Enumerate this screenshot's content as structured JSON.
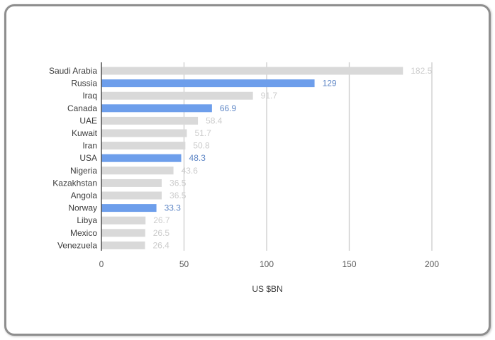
{
  "chart_data": {
    "type": "bar",
    "orientation": "horizontal",
    "categories": [
      "Saudi Arabia",
      "Russia",
      "Iraq",
      "Canada",
      "UAE",
      "Kuwait",
      "Iran",
      "USA",
      "Nigeria",
      "Kazakhstan",
      "Angola",
      "Norway",
      "Libya",
      "Mexico",
      "Venezuela"
    ],
    "values": [
      182.5,
      129,
      91.7,
      66.9,
      58.4,
      51.7,
      50.8,
      48.3,
      43.6,
      36.5,
      36.5,
      33.3,
      26.7,
      26.5,
      26.4
    ],
    "value_labels": [
      "182.5",
      "129",
      "91.7",
      "66.9",
      "58.4",
      "51.7",
      "50.8",
      "48.3",
      "43.6",
      "36.5",
      "36.5",
      "33.3",
      "26.7",
      "26.5",
      "26.4"
    ],
    "highlighted": [
      false,
      true,
      false,
      true,
      false,
      false,
      false,
      true,
      false,
      false,
      false,
      true,
      false,
      false,
      false
    ],
    "xlabel": "US $BN",
    "ylabel": "",
    "title": "",
    "xlim": [
      0,
      200
    ],
    "xticks": [
      0,
      50,
      100,
      150,
      200
    ],
    "grid": true,
    "colors": {
      "default_bar": "#d9d9d9",
      "highlight_bar": "#6d9eeb",
      "default_label": "#cccccc",
      "highlight_label": "#5f87c6",
      "gridline": "#cfcfcf",
      "axis": "#444444"
    }
  }
}
